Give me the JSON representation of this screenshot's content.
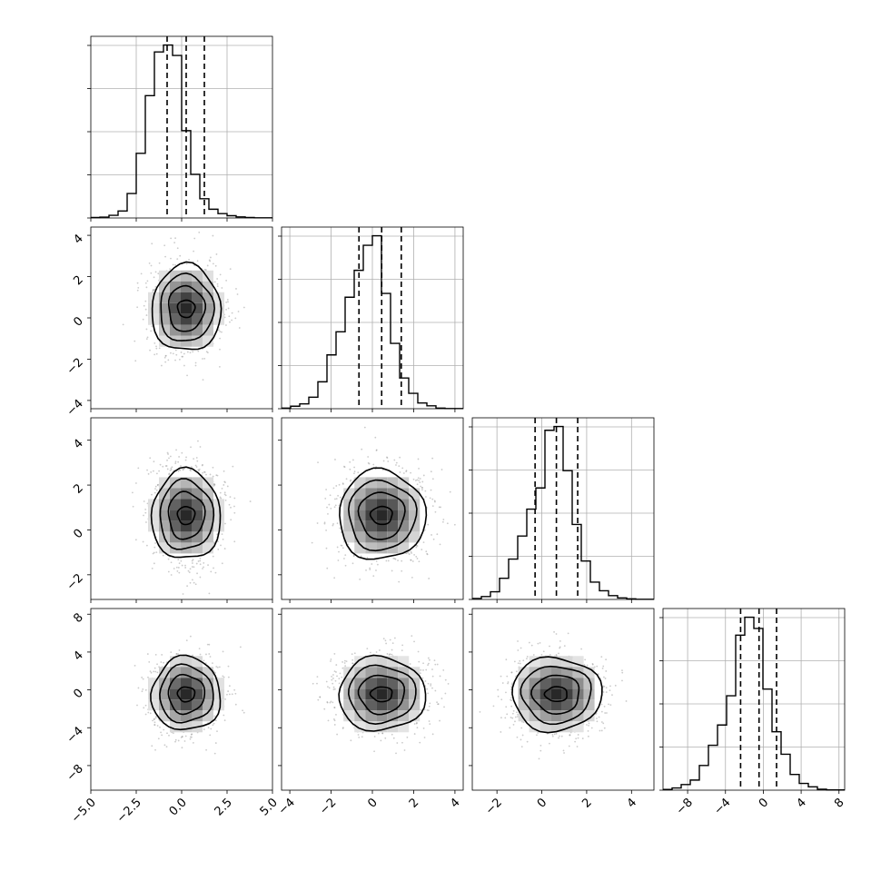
{
  "chart_data": {
    "type": "corner",
    "title": "",
    "parameter_labels": [
      "",
      "",
      "",
      ""
    ],
    "ranges": [
      [
        -5.0,
        5.0
      ],
      [
        -4.4,
        4.4
      ],
      [
        -3.1,
        5.0
      ],
      [
        -10.6,
        8.6
      ]
    ],
    "ticks": [
      [
        "−5.0",
        "−2.5",
        "0.0",
        "2.5",
        "5.0"
      ],
      [
        "−4",
        "−2",
        "0",
        "2",
        "4"
      ],
      [
        "−2",
        "0",
        "2",
        "4"
      ],
      [
        "−8",
        "−4",
        "0",
        "4",
        "8"
      ]
    ],
    "tick_values": [
      [
        -5.0,
        -2.5,
        0.0,
        2.5,
        5.0
      ],
      [
        -4,
        -2,
        0,
        2,
        4
      ],
      [
        -2,
        0,
        2,
        4
      ],
      [
        -8,
        -4,
        0,
        4,
        8
      ]
    ],
    "quantiles": [
      [
        -0.8,
        0.25,
        1.25
      ],
      [
        -0.65,
        0.45,
        1.4
      ],
      [
        -0.3,
        0.65,
        1.6
      ],
      [
        -2.4,
        -0.45,
        1.4
      ]
    ],
    "histograms": [
      {
        "bins": 20,
        "counts": [
          0.3,
          0.5,
          1.5,
          4,
          14,
          37,
          70,
          95,
          99,
          93,
          50,
          25,
          11,
          5,
          2.5,
          1.3,
          0.6,
          0.3,
          0.1,
          0.1
        ]
      },
      {
        "bins": 20,
        "counts": [
          0.3,
          1.3,
          2.5,
          6,
          14,
          28,
          40,
          58,
          72,
          85,
          90,
          60,
          34,
          16,
          8,
          3,
          1.5,
          0.3,
          0.1,
          0.1
        ]
      },
      {
        "bins": 20,
        "counts": [
          0.5,
          1.5,
          4,
          11,
          21,
          33,
          47,
          58,
          88,
          90,
          67,
          39,
          20,
          9,
          4.5,
          2,
          0.8,
          0.3,
          0.1,
          0.1
        ]
      },
      {
        "bins": 20,
        "counts": [
          0.3,
          1,
          2.5,
          4.5,
          11,
          20,
          29,
          42,
          69,
          77,
          72,
          45,
          26,
          16,
          7,
          3,
          1.5,
          0.4,
          0.1,
          0.1
        ]
      }
    ],
    "joint": [
      {
        "x": 1,
        "y": 0,
        "mean": [
          0.25,
          0.45
        ],
        "sd": [
          0.95,
          1.05
        ]
      },
      {
        "x": 2,
        "y": 0,
        "mean": [
          0.25,
          0.65
        ],
        "sd": [
          0.95,
          1.0
        ]
      },
      {
        "x": 2,
        "y": 1,
        "mean": [
          0.45,
          0.65
        ],
        "sd": [
          1.05,
          1.0
        ]
      },
      {
        "x": 3,
        "y": 0,
        "mean": [
          0.25,
          -0.45
        ],
        "sd": [
          0.95,
          1.95
        ]
      },
      {
        "x": 3,
        "y": 1,
        "mean": [
          0.45,
          -0.45
        ],
        "sd": [
          1.05,
          1.95
        ]
      },
      {
        "x": 3,
        "y": 2,
        "mean": [
          0.65,
          -0.45
        ],
        "sd": [
          1.0,
          1.95
        ]
      }
    ]
  }
}
